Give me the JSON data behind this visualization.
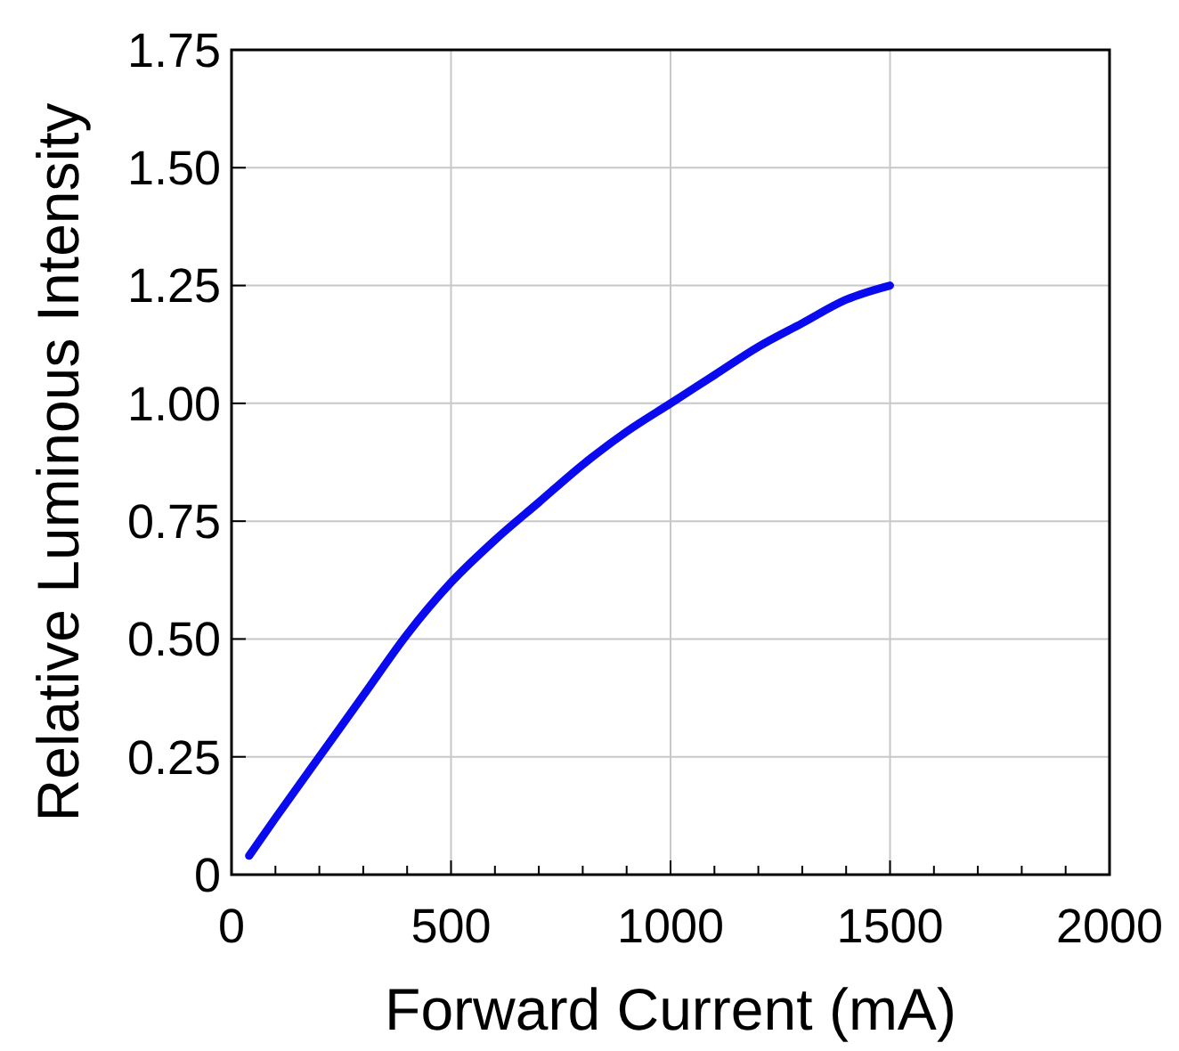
{
  "chart_data": {
    "type": "line",
    "xlabel": "Forward Current (mA)",
    "ylabel": "Relative Luminous Intensity",
    "x": [
      40,
      100,
      200,
      300,
      400,
      500,
      600,
      700,
      800,
      900,
      1000,
      1100,
      1200,
      1300,
      1400,
      1500
    ],
    "series": [
      {
        "color": "#0a0af0",
        "values": [
          0.04,
          0.12,
          0.25,
          0.38,
          0.51,
          0.62,
          0.71,
          0.79,
          0.87,
          0.94,
          1.0,
          1.06,
          1.12,
          1.17,
          1.22,
          1.25
        ]
      }
    ],
    "xlim": [
      0,
      2000
    ],
    "xticks": [
      0,
      {
        "value": 100,
        "label": null
      },
      {
        "value": 200,
        "label": null
      },
      {
        "value": 300,
        "label": null
      },
      {
        "value": 400,
        "label": null
      },
      500,
      {
        "value": 600,
        "label": null
      },
      {
        "value": 700,
        "label": null
      },
      {
        "value": 800,
        "label": null
      },
      {
        "value": 900,
        "label": null
      },
      1000,
      {
        "value": 1100,
        "label": null
      },
      {
        "value": 1200,
        "label": null
      },
      {
        "value": 1300,
        "label": null
      },
      {
        "value": 1400,
        "label": null
      },
      1500,
      {
        "value": 1600,
        "label": null
      },
      {
        "value": 1700,
        "label": null
      },
      {
        "value": 1800,
        "label": null
      },
      {
        "value": 1900,
        "label": null
      },
      2000
    ],
    "ylim": [
      0,
      1.75
    ],
    "yticks": [
      0,
      {
        "value": 0.25,
        "label": "0.25"
      },
      {
        "value": 0.5,
        "label": "0.50"
      },
      {
        "value": 0.75,
        "label": "0.75"
      },
      {
        "value": 1,
        "label": "1.00"
      },
      {
        "value": 1.25,
        "label": "1.25"
      },
      {
        "value": 1.5,
        "label": "1.50"
      },
      {
        "value": 1.75,
        "label": "1.75"
      }
    ],
    "grid": true,
    "marker": "none",
    "line_style": "solid"
  }
}
